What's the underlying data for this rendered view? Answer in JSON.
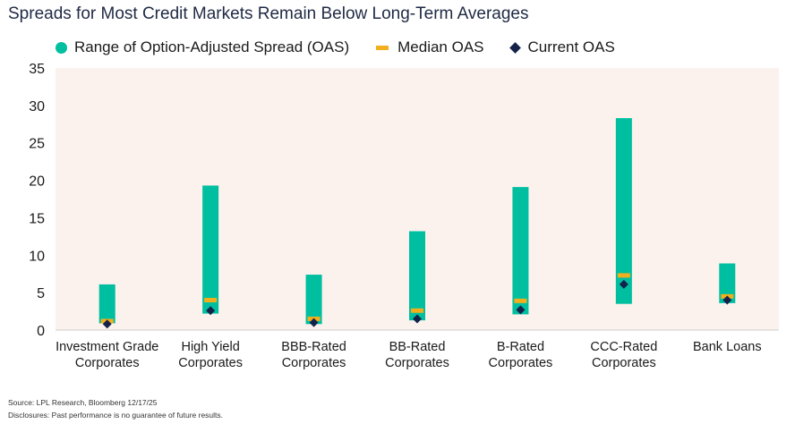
{
  "title": "Spreads for Most Credit Markets Remain Below Long-Term Averages",
  "source": "Source: LPL Research, Bloomberg 12/17/25",
  "disclosure": "Disclosures: Past performance is no guarantee of future results.",
  "colors": {
    "range": "#00bfa0",
    "median": "#f2ae1c",
    "current": "#14224a",
    "plot_bg": "#fbf1ed"
  },
  "legend": {
    "range_label": "Range of Option-Adjusted Spread (OAS)",
    "median_label": "Median OAS",
    "current_label": "Current OAS"
  },
  "chart_data": {
    "type": "range-bar",
    "ylim": [
      0,
      35
    ],
    "yticks": [
      0,
      5,
      10,
      15,
      20,
      25,
      30,
      35
    ],
    "grid": false,
    "legend_position": "top-left",
    "categories": [
      [
        "Investment Grade",
        "Corporates"
      ],
      [
        "High Yield",
        "Corporates"
      ],
      [
        "BBB-Rated",
        "Corporates"
      ],
      [
        "BB-Rated",
        "Corporates"
      ],
      [
        "B-Rated",
        "Corporates"
      ],
      [
        "CCC-Rated",
        "Corporates"
      ],
      [
        "Bank Loans"
      ]
    ],
    "series": [
      {
        "name": "Range of Option-Adjusted Spread (OAS)",
        "low": [
          0.9,
          2.2,
          0.8,
          1.3,
          2.1,
          3.5,
          3.6
        ],
        "high": [
          6.1,
          19.3,
          7.4,
          13.2,
          19.1,
          28.3,
          8.9
        ]
      },
      {
        "name": "Median OAS",
        "values": [
          1.2,
          4.0,
          1.5,
          2.6,
          3.9,
          7.3,
          4.5
        ]
      },
      {
        "name": "Current OAS",
        "values": [
          0.8,
          2.6,
          1.0,
          1.5,
          2.7,
          6.1,
          4.0
        ]
      }
    ]
  }
}
